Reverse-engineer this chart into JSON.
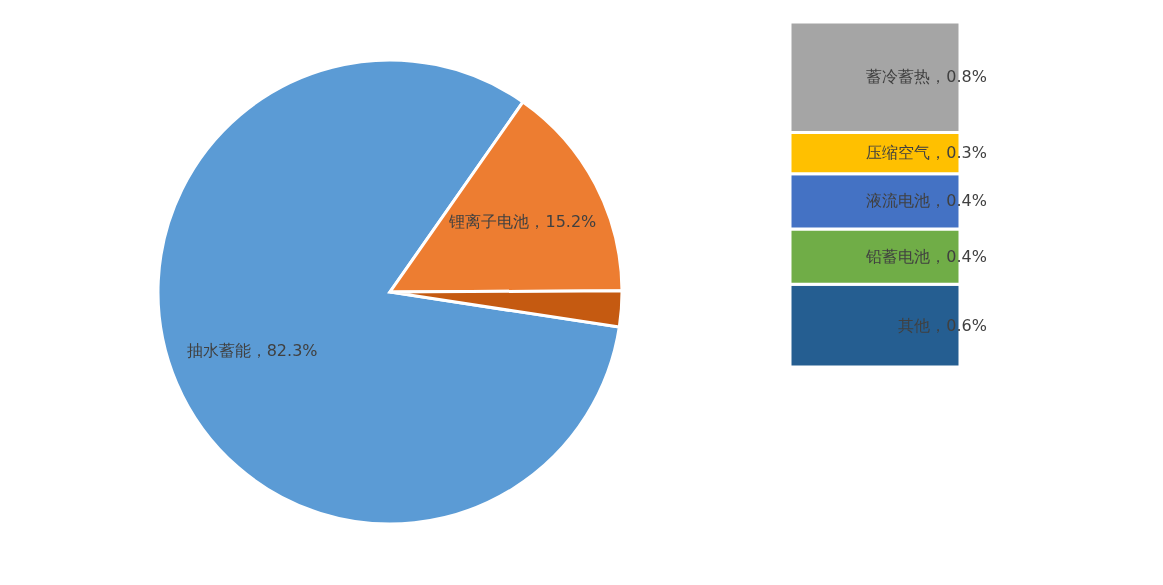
{
  "chart_data": [
    {
      "type": "pie",
      "categories": [
        "抽水蓄能",
        "锂离子电池",
        null
      ],
      "values": [
        82.3,
        15.2,
        2.5
      ],
      "colors": [
        "#5b9bd5",
        "#ed7d31",
        "#c55a11"
      ],
      "value_labels": [
        "82.3%",
        "15.2%",
        null
      ],
      "legend": false
    },
    {
      "type": "bar",
      "stacked": true,
      "categories": [
        null
      ],
      "legend": false,
      "tick_labels": false,
      "series": [
        {
          "color": "#255e91",
          "values": [
            0.6
          ],
          "value_labels": [
            "其他，0.6%"
          ]
        },
        {
          "color": "#70ad47",
          "values": [
            0.4
          ],
          "value_labels": [
            "铅蓄电池，0.4%"
          ]
        },
        {
          "color": "#4472c4",
          "values": [
            0.4
          ],
          "value_labels": [
            "液流电池，0.4%"
          ]
        },
        {
          "color": "#ffc000",
          "values": [
            0.3
          ],
          "value_labels": [
            "压缩空气，0.3%"
          ]
        },
        {
          "color": "#a5a5a5",
          "values": [
            0.8
          ],
          "value_labels": [
            "蓄冷蓄热，0.8%"
          ]
        }
      ]
    }
  ]
}
